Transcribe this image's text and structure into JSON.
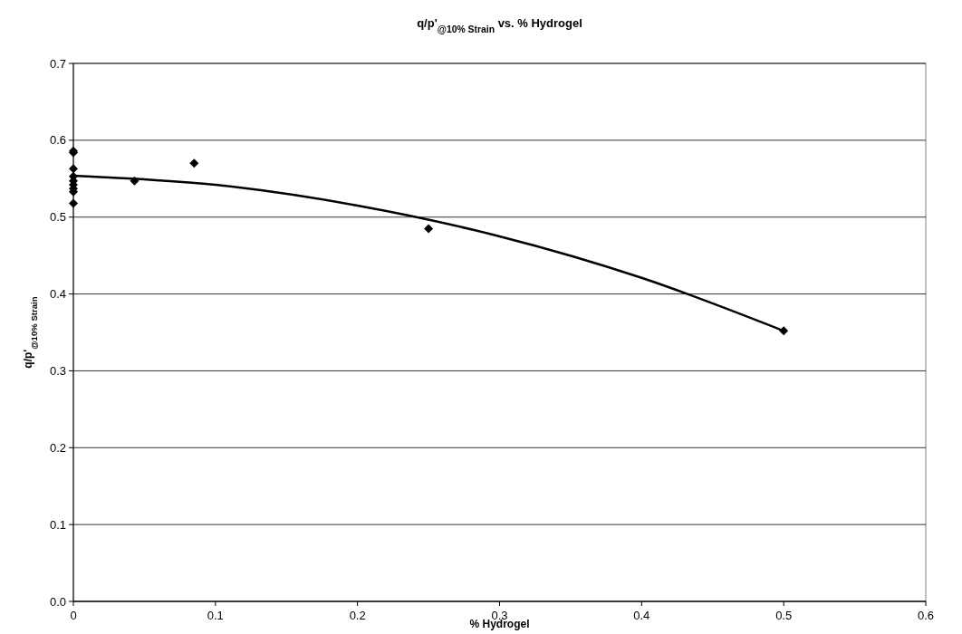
{
  "chart_data": {
    "type": "scatter",
    "title": "q/p'$_{@10% Strain}$ vs. % Hydrogel",
    "xlabel": "% Hydrogel",
    "ylabel": "q/p'$_{@10% Strain}$",
    "xlim": [
      0,
      0.6
    ],
    "xticks": [
      0,
      0.1,
      0.2,
      0.3,
      0.4,
      0.5,
      0.6
    ],
    "ylim": [
      0,
      0.7
    ],
    "yticks": [
      {
        "value": 0,
        "label": "0.0"
      },
      0.1,
      0.2,
      0.3,
      0.4,
      0.5,
      0.6,
      0.7
    ],
    "grid": "y",
    "series": [
      {
        "marker": "diamond",
        "color": "#000000",
        "x": [
          0,
          0,
          0,
          0,
          0,
          0,
          0,
          0,
          0,
          0.043,
          0.085,
          0.25,
          0.5
        ],
        "values": [
          0.586,
          0.584,
          0.563,
          0.553,
          0.547,
          0.542,
          0.537,
          0.533,
          0.518,
          0.547,
          0.57,
          0.485,
          0.352
        ]
      },
      {
        "type": "line",
        "color": "#000000",
        "line_style": "solid",
        "x": [
          0,
          0.1,
          0.2,
          0.3,
          0.4,
          0.5
        ],
        "values": [
          0.554,
          0.542,
          0.515,
          0.475,
          0.421,
          0.352
        ]
      }
    ]
  }
}
